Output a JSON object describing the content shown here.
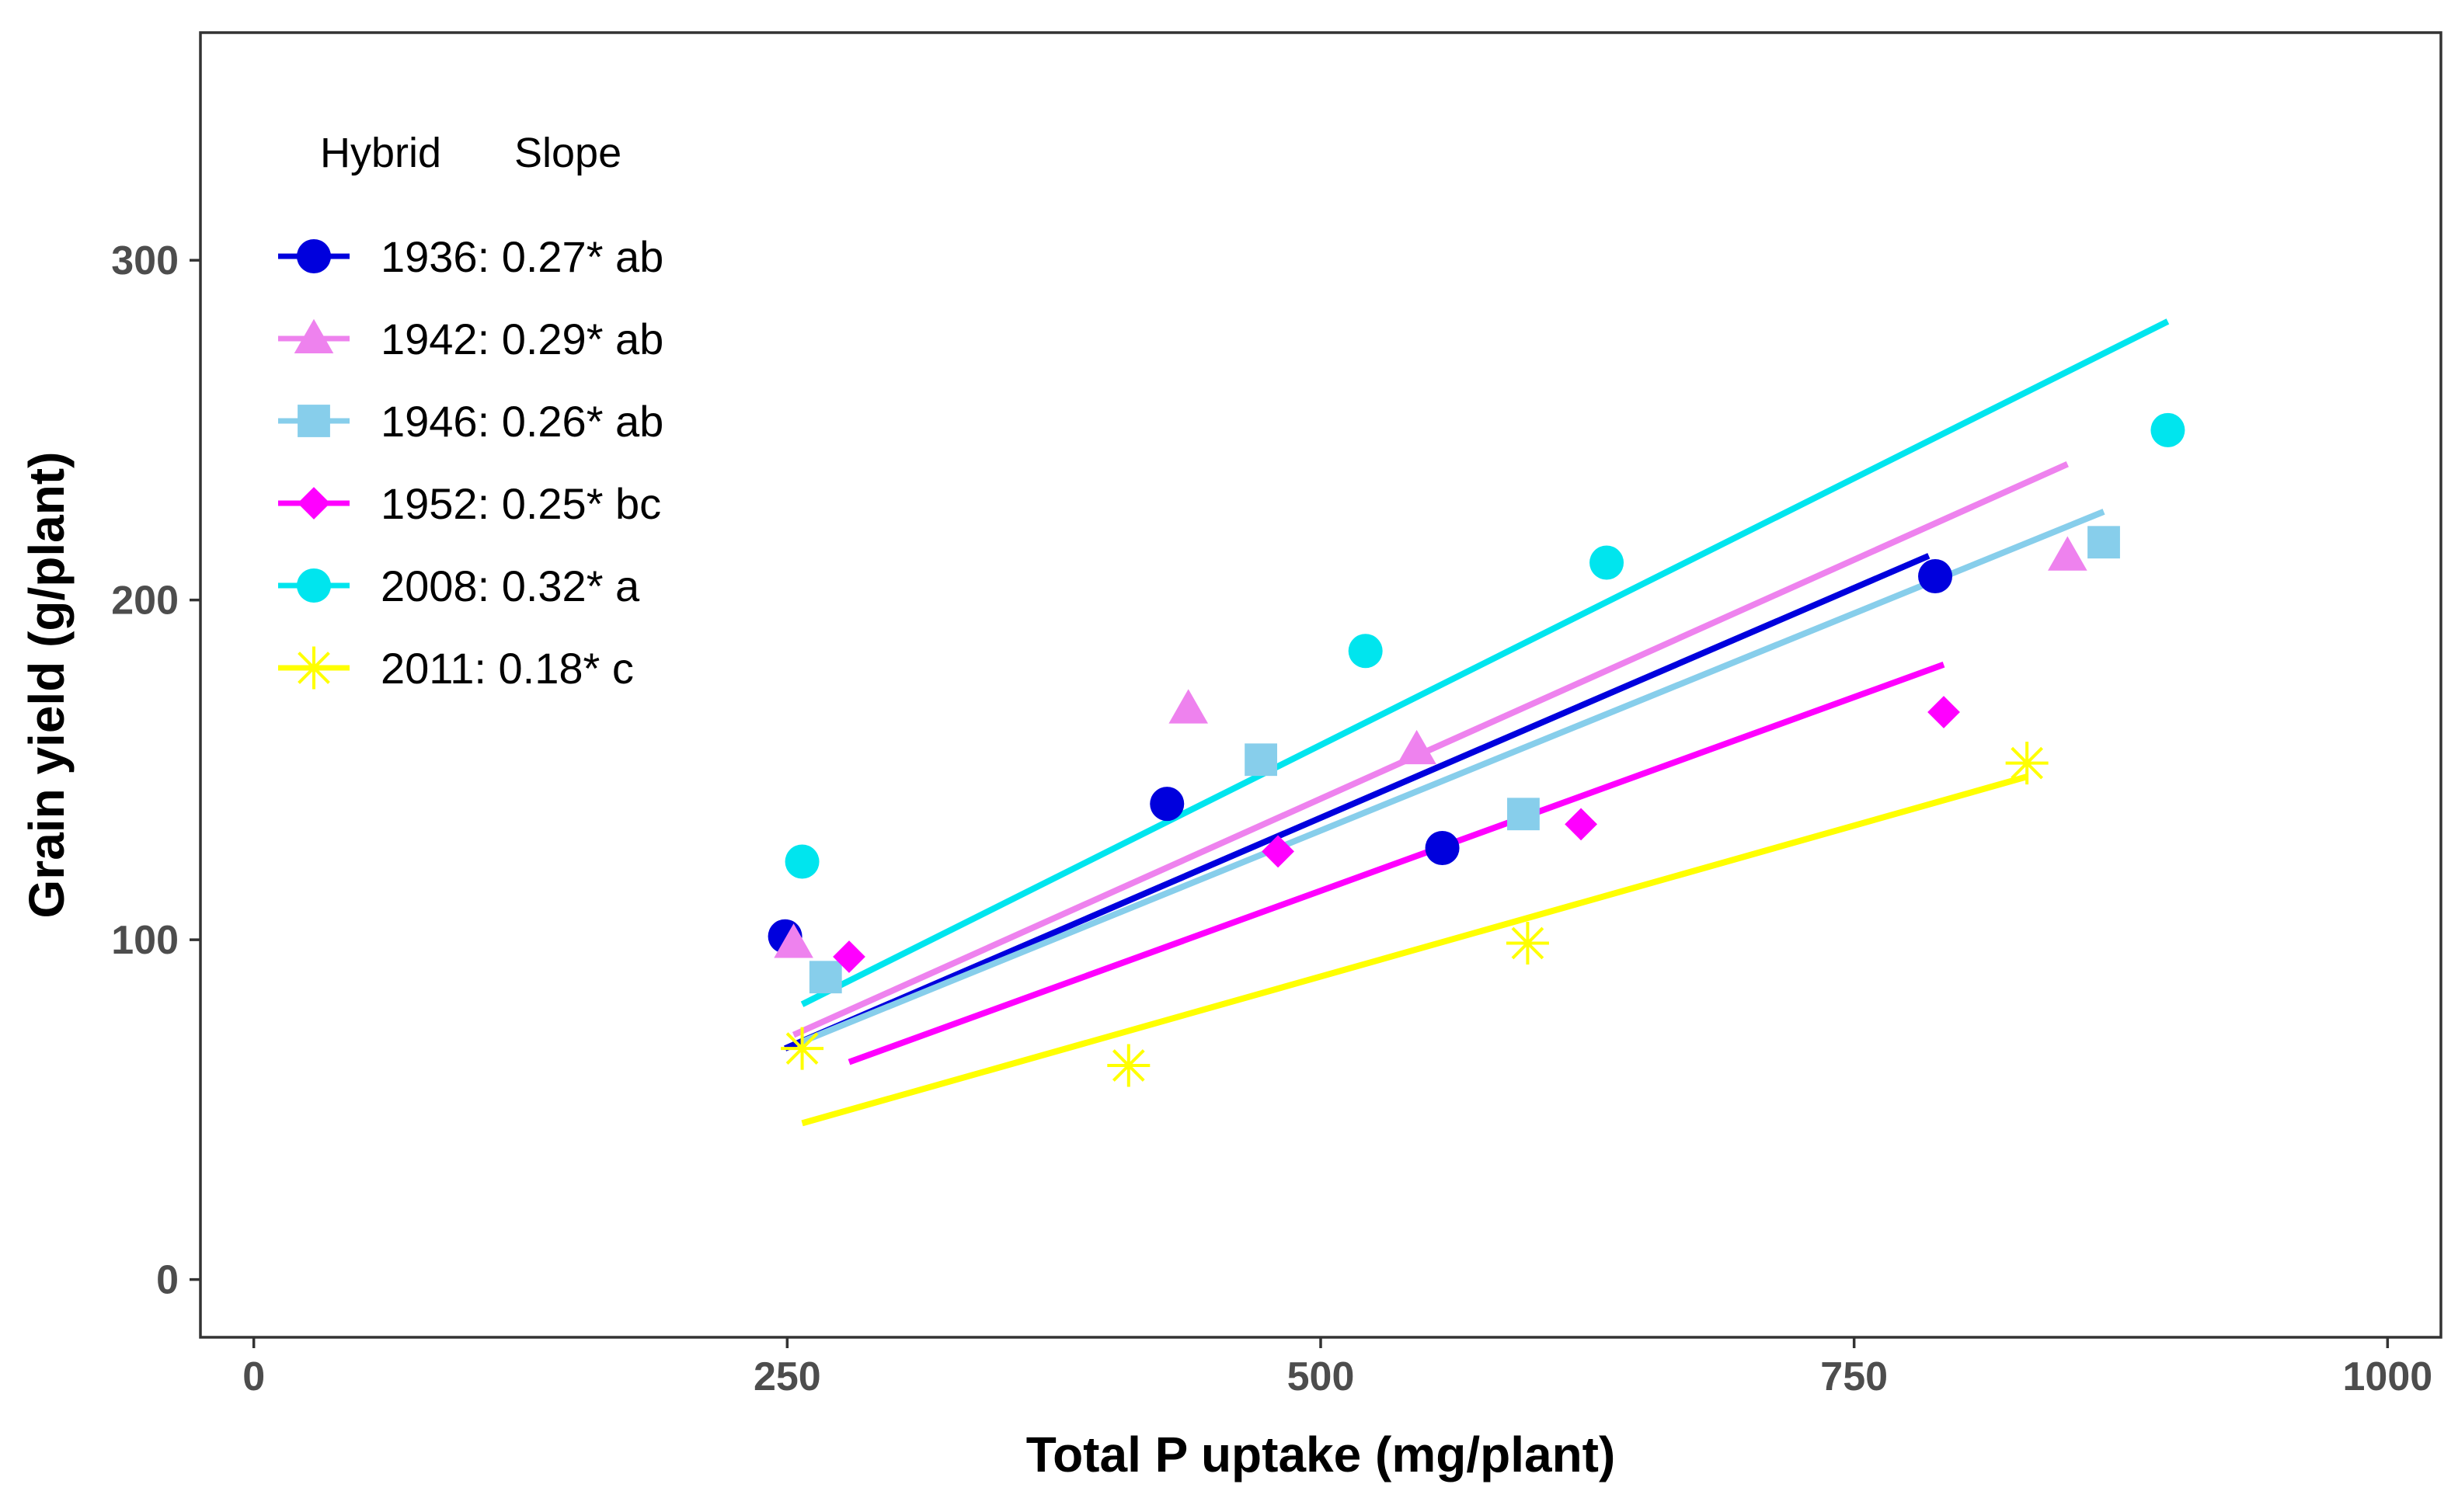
{
  "chart_data": {
    "type": "scatter",
    "title": "",
    "xlabel": "Total P uptake (mg/plant)",
    "ylabel": "Grain yield (g/plant)",
    "xlim": [
      -25,
      1025
    ],
    "ylim": [
      -17,
      367
    ],
    "x_ticks": [
      0,
      250,
      500,
      750,
      1000
    ],
    "y_ticks": [
      0,
      100,
      200,
      300
    ],
    "grid": false,
    "legend": {
      "placement": "top-left",
      "title_hybrid": "Hybrid",
      "title_slope": "Slope"
    },
    "series": [
      {
        "name": "1936: 0.27* ab",
        "hybrid": "1936",
        "slope": "0.27* ab",
        "color": "#0000dd",
        "marker": "circle",
        "points": [
          [
            249,
            101
          ],
          [
            428,
            140
          ],
          [
            557,
            127
          ],
          [
            788,
            207
          ]
        ],
        "fit": [
          [
            249,
            68
          ],
          [
            785,
            213
          ]
        ]
      },
      {
        "name": "1942: 0.29* ab",
        "hybrid": "1942",
        "slope": "0.29* ab",
        "color": "#ee82ee",
        "marker": "triangle",
        "points": [
          [
            253,
            99
          ],
          [
            438,
            168
          ],
          [
            545,
            156
          ],
          [
            850,
            213
          ]
        ],
        "fit": [
          [
            253,
            72
          ],
          [
            850,
            240
          ]
        ]
      },
      {
        "name": "1946: 0.26* ab",
        "hybrid": "1946",
        "slope": "0.26* ab",
        "color": "#87ceeb",
        "marker": "square",
        "points": [
          [
            268,
            89
          ],
          [
            472,
            153
          ],
          [
            595,
            137
          ],
          [
            867,
            217
          ]
        ],
        "fit": [
          [
            257,
            70
          ],
          [
            867,
            226
          ]
        ]
      },
      {
        "name": "1952: 0.25* bc",
        "hybrid": "1952",
        "slope": "0.25* bc",
        "color": "#ff00ff",
        "marker": "diamond",
        "points": [
          [
            279,
            95
          ],
          [
            480,
            126
          ],
          [
            622,
            134
          ],
          [
            792,
            167
          ]
        ],
        "fit": [
          [
            279,
            64
          ],
          [
            792,
            181
          ]
        ]
      },
      {
        "name": "2008: 0.32* a",
        "hybrid": "2008",
        "slope": "0.32* a",
        "color": "#00e5ee",
        "marker": "circle",
        "points": [
          [
            257,
            123
          ],
          [
            521,
            185
          ],
          [
            634,
            211
          ],
          [
            897,
            250
          ]
        ],
        "fit": [
          [
            257,
            81
          ],
          [
            897,
            282
          ]
        ]
      },
      {
        "name": "2011: 0.18* c",
        "hybrid": "2011",
        "slope": "0.18* c",
        "color": "#ffff00",
        "marker": "asterisk",
        "points": [
          [
            257,
            68
          ],
          [
            410,
            63
          ],
          [
            597,
            99
          ],
          [
            831,
            152
          ]
        ],
        "fit": [
          [
            257,
            46
          ],
          [
            831,
            148
          ]
        ]
      }
    ]
  }
}
